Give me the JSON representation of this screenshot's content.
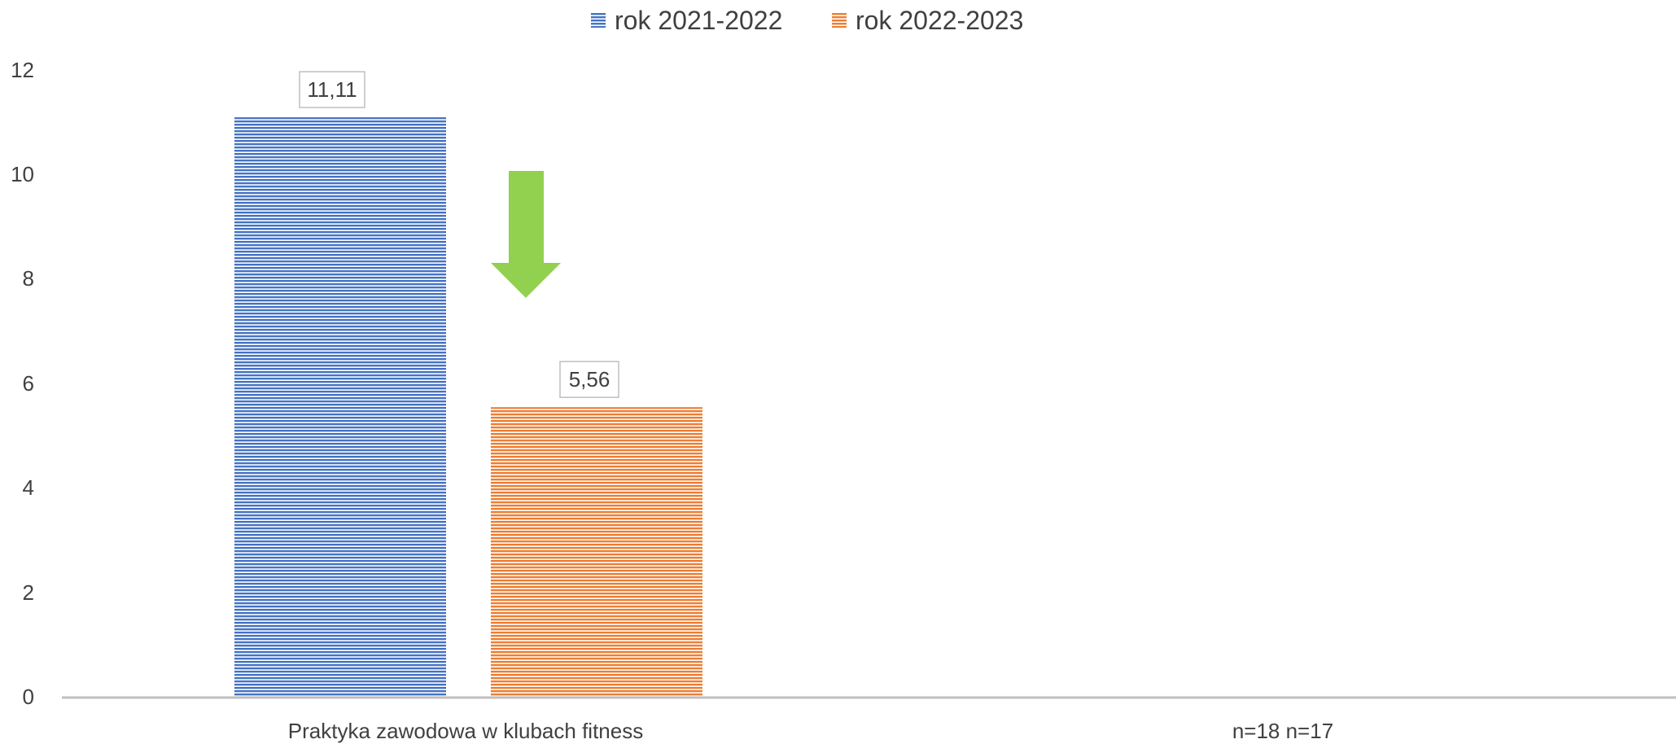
{
  "chart_data": {
    "type": "bar",
    "categories": [
      "Praktyka zawodowa w klubach fitness",
      "n=18 n=17"
    ],
    "series": [
      {
        "name": "rok 2021-2022",
        "color": "#4472C4",
        "values": [
          11.11,
          null
        ]
      },
      {
        "name": "rok 2022-2023",
        "color": "#ED7D31",
        "values": [
          5.56,
          null
        ]
      }
    ],
    "data_labels": [
      "11,11",
      "5,56"
    ],
    "y_ticks": [
      "0",
      "2",
      "4",
      "6",
      "8",
      "10",
      "12"
    ],
    "ylim": [
      0,
      12
    ],
    "legend_position": "top",
    "grid": false,
    "annotation": {
      "shape": "down-arrow",
      "color": "#92D050"
    }
  }
}
